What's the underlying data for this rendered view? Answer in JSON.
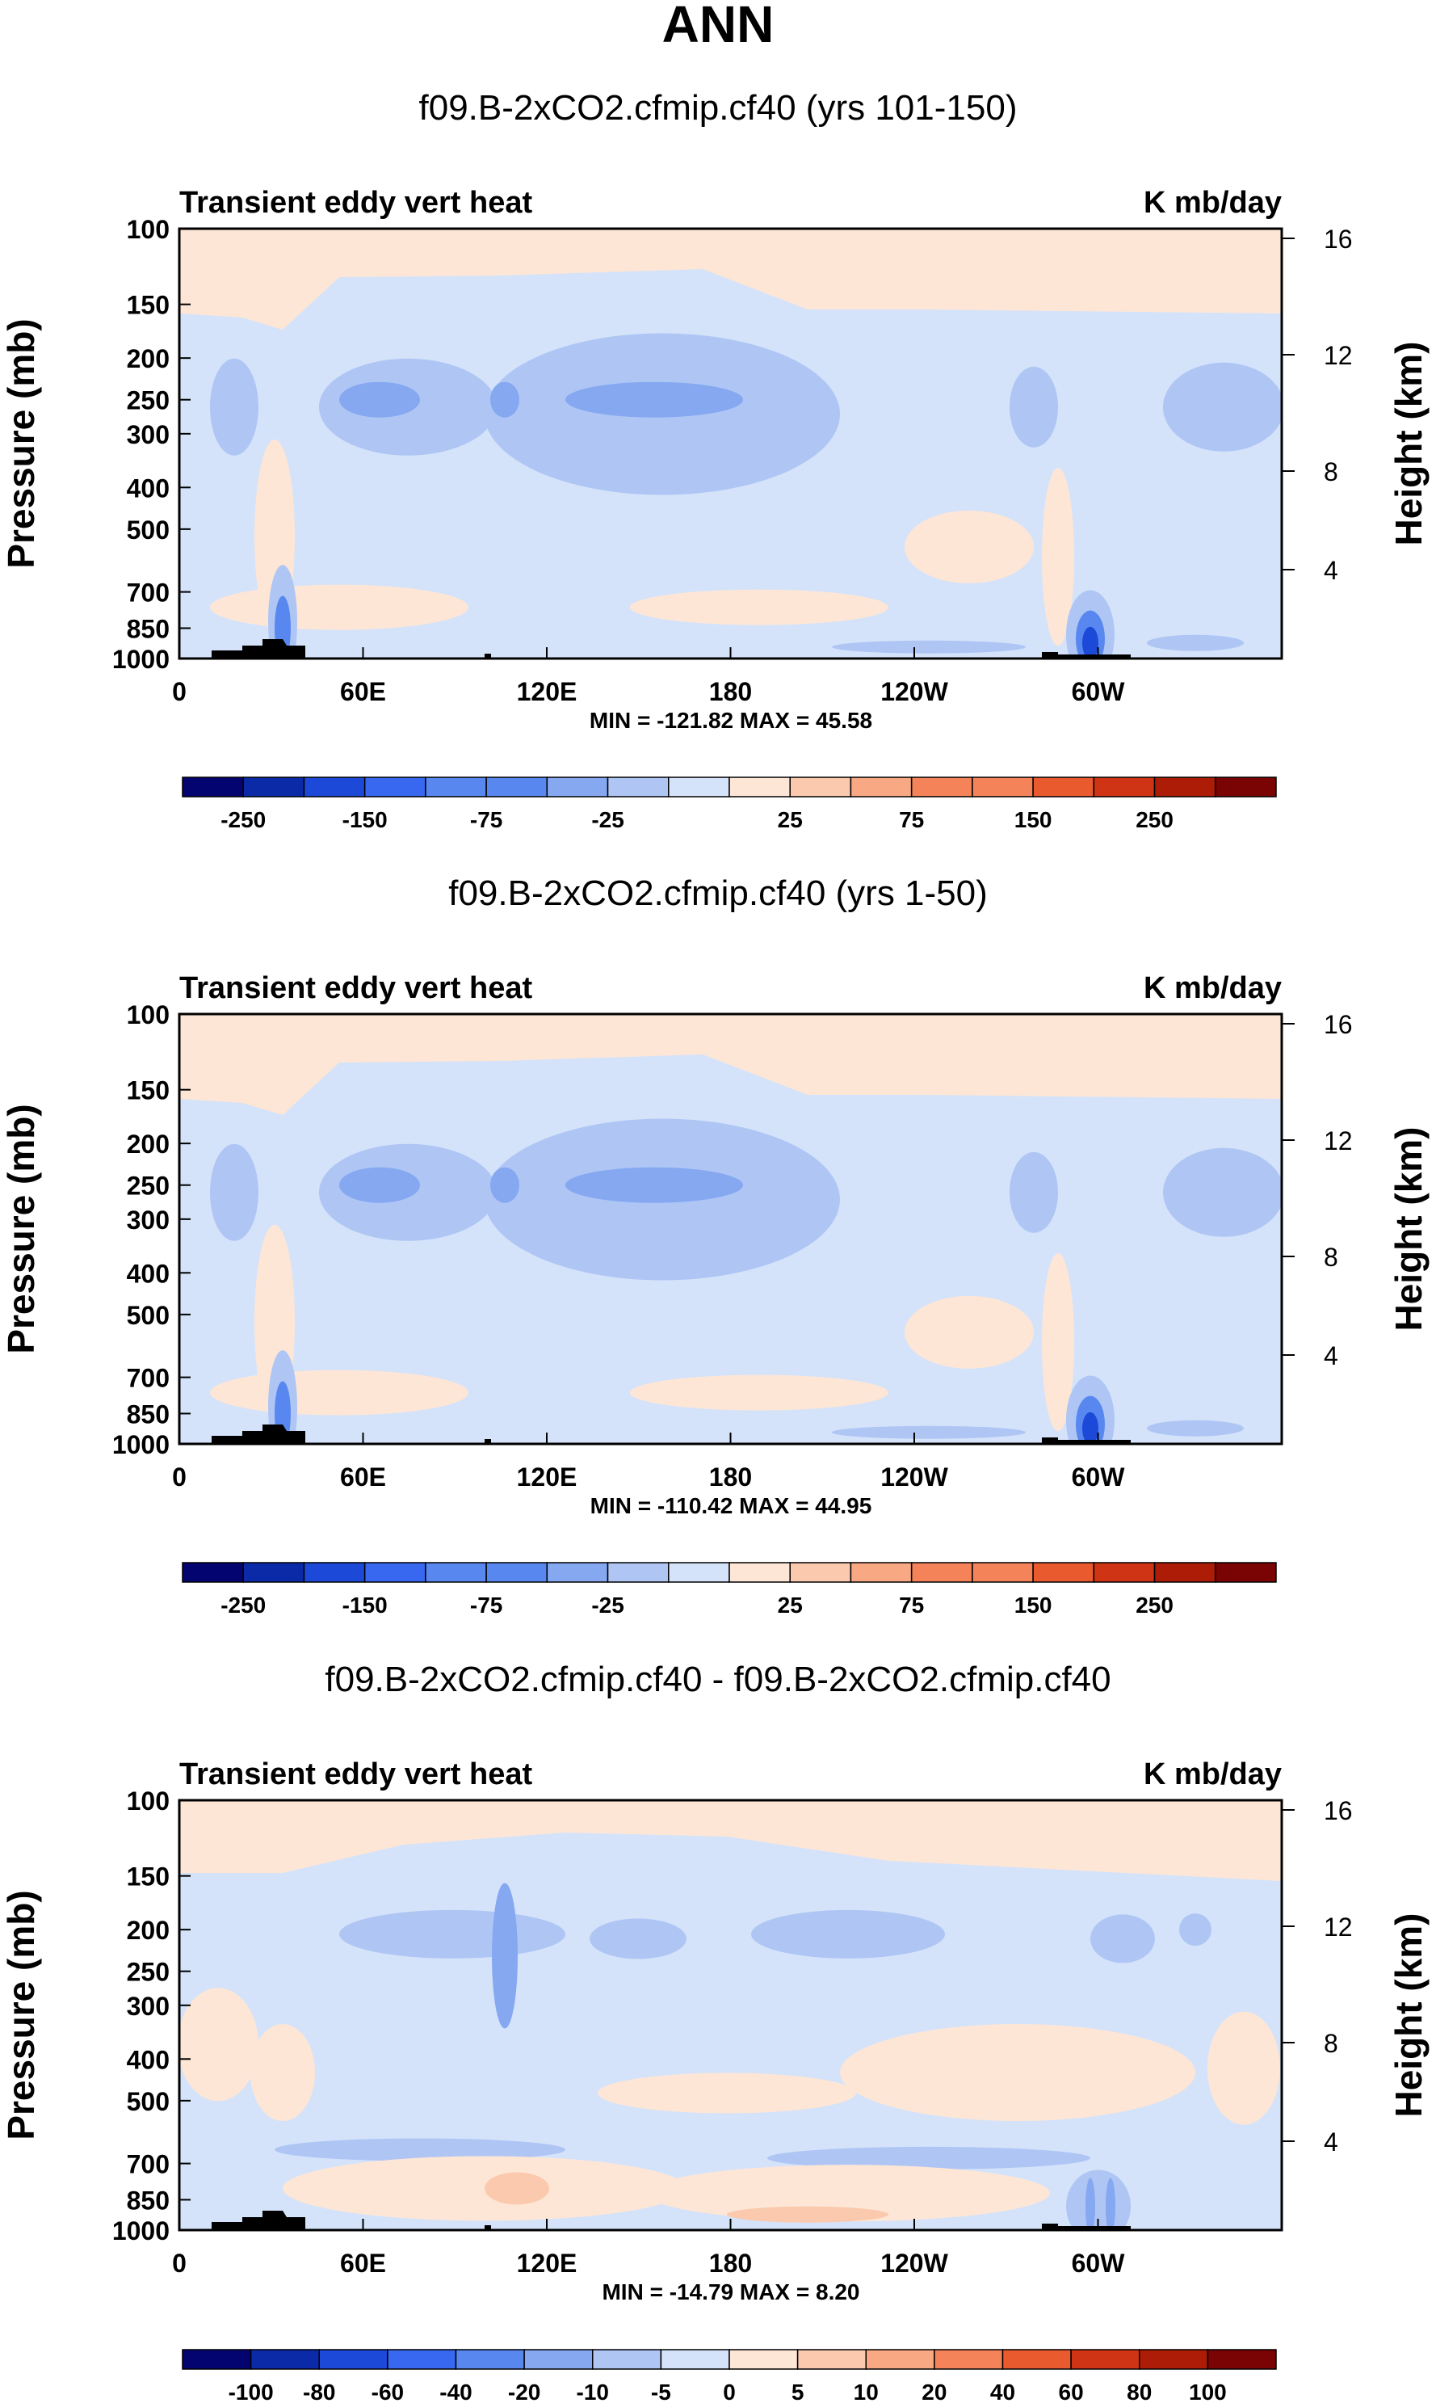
{
  "page_title": "ANN",
  "chart_data": [
    {
      "type": "heatmap",
      "title": "f09.B-2xCO2.cfmip.cf40 (yrs 101-150)",
      "left_label": "Transient eddy vert heat",
      "right_label": "K mb/day",
      "ylabel": "Pressure (mb)",
      "ylabel_right": "Height (km)",
      "x_ticks": [
        "0",
        "60E",
        "120E",
        "180",
        "120W",
        "60W"
      ],
      "y_ticks": [
        "100",
        "150",
        "200",
        "250",
        "300",
        "400",
        "500",
        "700",
        "850",
        "1000"
      ],
      "y_right_ticks": [
        "16",
        "12",
        "8",
        "4"
      ],
      "stats": "MIN = -121.82  MAX =  45.58",
      "min": -121.82,
      "max": 45.58,
      "colorbar_labels": [
        "-250",
        "-150",
        "-75",
        "-25",
        "25",
        "75",
        "150",
        "250"
      ],
      "colorbar_levels": [
        -300,
        -250,
        -200,
        -150,
        -100,
        -75,
        -50,
        -25,
        0,
        25,
        50,
        75,
        100,
        150,
        200,
        250,
        300
      ]
    },
    {
      "type": "heatmap",
      "title": "f09.B-2xCO2.cfmip.cf40 (yrs 1-50)",
      "left_label": "Transient eddy vert heat",
      "right_label": "K mb/day",
      "ylabel": "Pressure (mb)",
      "ylabel_right": "Height (km)",
      "x_ticks": [
        "0",
        "60E",
        "120E",
        "180",
        "120W",
        "60W"
      ],
      "y_ticks": [
        "100",
        "150",
        "200",
        "250",
        "300",
        "400",
        "500",
        "700",
        "850",
        "1000"
      ],
      "y_right_ticks": [
        "16",
        "12",
        "8",
        "4"
      ],
      "stats": "MIN = -110.42  MAX =  44.95",
      "min": -110.42,
      "max": 44.95,
      "colorbar_labels": [
        "-250",
        "-150",
        "-75",
        "-25",
        "25",
        "75",
        "150",
        "250"
      ],
      "colorbar_levels": [
        -300,
        -250,
        -200,
        -150,
        -100,
        -75,
        -50,
        -25,
        0,
        25,
        50,
        75,
        100,
        150,
        200,
        250,
        300
      ]
    },
    {
      "type": "heatmap",
      "title": "f09.B-2xCO2.cfmip.cf40 - f09.B-2xCO2.cfmip.cf40",
      "left_label": "Transient eddy vert heat",
      "right_label": "K mb/day",
      "ylabel": "Pressure (mb)",
      "ylabel_right": "Height (km)",
      "x_ticks": [
        "0",
        "60E",
        "120E",
        "180",
        "120W",
        "60W"
      ],
      "y_ticks": [
        "100",
        "150",
        "200",
        "250",
        "300",
        "400",
        "500",
        "700",
        "850",
        "1000"
      ],
      "y_right_ticks": [
        "16",
        "12",
        "8",
        "4"
      ],
      "stats": "MIN = -14.79  MAX =   8.20",
      "min": -14.79,
      "max": 8.2,
      "colorbar_labels": [
        "-100",
        "-80",
        "-60",
        "-40",
        "-20",
        "-10",
        "-5",
        "0",
        "5",
        "10",
        "20",
        "40",
        "60",
        "80",
        "100"
      ],
      "colorbar_levels": [
        -100,
        -80,
        -60,
        -40,
        -20,
        -10,
        -5,
        0,
        5,
        10,
        20,
        40,
        60,
        80,
        100
      ]
    }
  ],
  "colors": {
    "palette": [
      "#03046f",
      "#0a2aa8",
      "#1d49d8",
      "#3768ef",
      "#5887f0",
      "#85a8f1",
      "#afc6f5",
      "#d4e3fa",
      "#fde6d6",
      "#fbc9ad",
      "#f8a983",
      "#f4835a",
      "#ea5a2f",
      "#cf3514",
      "#ac1c06",
      "#7a0403"
    ],
    "light_blue": "#d4e3fa",
    "mid_blue": "#afc6f5",
    "blue": "#85a8f1",
    "strong_blue": "#5887f0",
    "deep_blue": "#1d49d8",
    "light_orange": "#fde6d6",
    "orange": "#fbc9ad",
    "red": "#f4835a",
    "terrain": "#000000"
  }
}
